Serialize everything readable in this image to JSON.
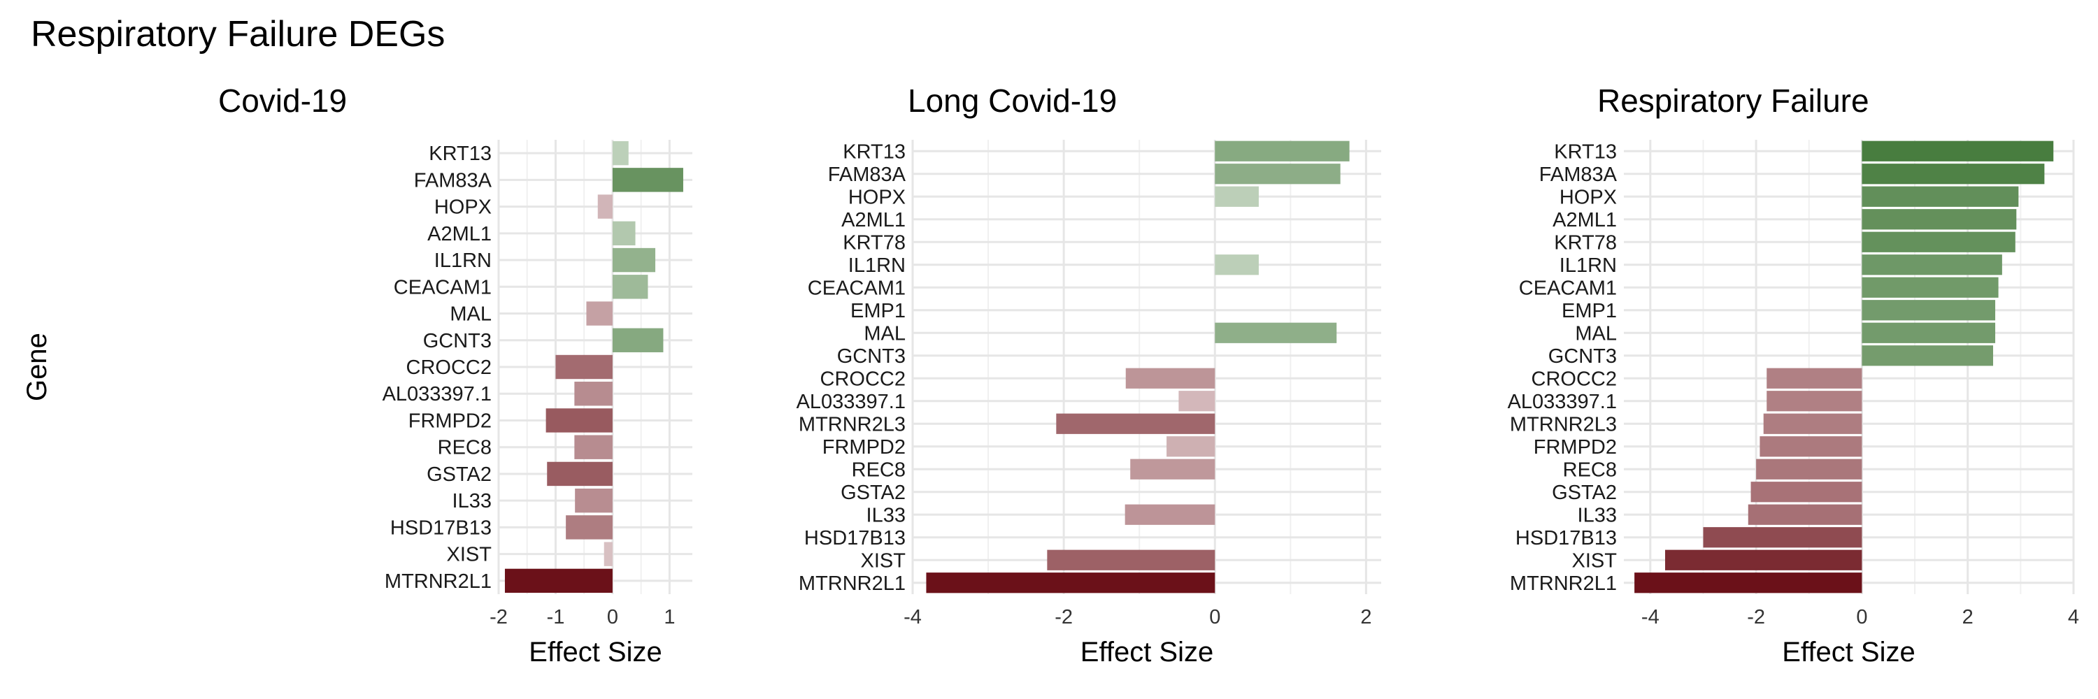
{
  "figure": {
    "title": "Respiratory Failure DEGs",
    "colors": {
      "positive": "#2e6a23",
      "negative": "#6b1119"
    }
  },
  "chart_data": [
    {
      "type": "bar",
      "orientation": "horizontal",
      "title": "Covid-19",
      "xlabel": "Effect Size",
      "ylabel": "Gene",
      "xlim": [
        -2.0,
        1.4
      ],
      "xticks": [
        -2,
        -1,
        0,
        1
      ],
      "categories": [
        "KRT13",
        "FAM83A",
        "HOPX",
        "A2ML1",
        "IL1RN",
        "CEACAM1",
        "MAL",
        "GCNT3",
        "CROCC2",
        "AL033397.1",
        "FRMPD2",
        "REC8",
        "GSTA2",
        "IL33",
        "HSD17B13",
        "XIST",
        "MTRNR2L1"
      ],
      "values": [
        0.28,
        1.24,
        -0.26,
        0.4,
        0.75,
        0.62,
        -0.46,
        0.89,
        -1.0,
        -0.67,
        -1.17,
        -0.67,
        -1.15,
        -0.66,
        -0.82,
        -0.15,
        -1.89
      ]
    },
    {
      "type": "bar",
      "orientation": "horizontal",
      "title": "Long Covid-19",
      "xlabel": "Effect Size",
      "ylabel": "",
      "xlim": [
        -4.0,
        2.2
      ],
      "xticks": [
        -4,
        -2,
        0,
        2
      ],
      "categories": [
        "KRT13",
        "FAM83A",
        "HOPX",
        "A2ML1",
        "KRT78",
        "IL1RN",
        "CEACAM1",
        "EMP1",
        "MAL",
        "GCNT3",
        "CROCC2",
        "AL033397.1",
        "MTRNR2L3",
        "FRMPD2",
        "REC8",
        "GSTA2",
        "IL33",
        "HSD17B13",
        "XIST",
        "MTRNR2L1"
      ],
      "values": [
        1.78,
        1.66,
        0.58,
        0,
        0,
        0.58,
        0,
        0,
        1.61,
        0,
        -1.18,
        -0.48,
        -2.1,
        -0.64,
        -1.12,
        0,
        -1.19,
        0,
        -2.22,
        -3.82
      ]
    },
    {
      "type": "bar",
      "orientation": "horizontal",
      "title": "Respiratory Failure",
      "xlabel": "Effect Size",
      "ylabel": "",
      "xlim": [
        -4.5,
        4.0
      ],
      "xticks": [
        -4,
        -2,
        0,
        2,
        4
      ],
      "categories": [
        "KRT13",
        "FAM83A",
        "HOPX",
        "A2ML1",
        "KRT78",
        "IL1RN",
        "CEACAM1",
        "EMP1",
        "MAL",
        "GCNT3",
        "CROCC2",
        "AL033397.1",
        "MTRNR2L3",
        "FRMPD2",
        "REC8",
        "GSTA2",
        "IL33",
        "HSD17B13",
        "XIST",
        "MTRNR2L1"
      ],
      "values": [
        3.62,
        3.45,
        2.96,
        2.92,
        2.9,
        2.65,
        2.58,
        2.52,
        2.52,
        2.48,
        -1.8,
        -1.8,
        -1.86,
        -1.93,
        -2.0,
        -2.1,
        -2.15,
        -3.0,
        -3.72,
        -4.3
      ]
    }
  ]
}
